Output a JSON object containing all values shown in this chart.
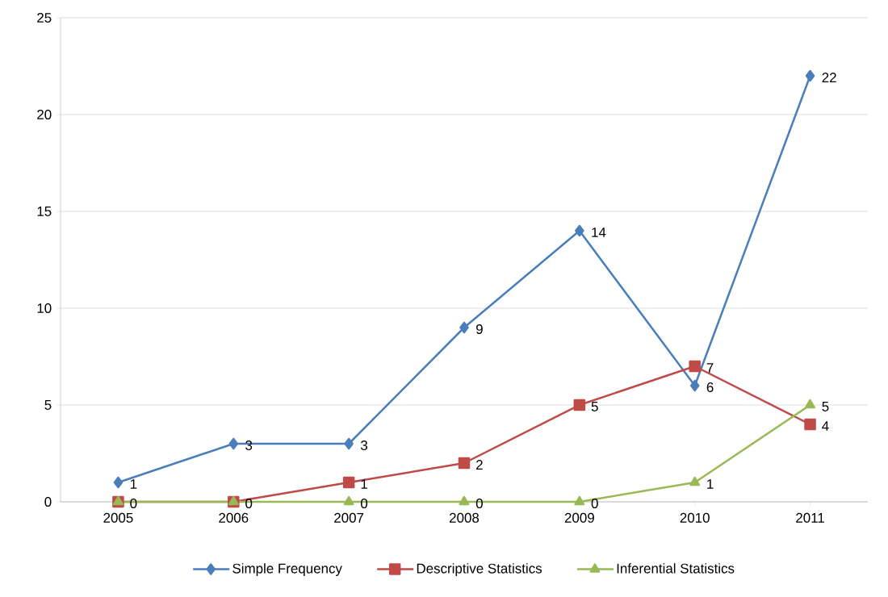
{
  "chart_data": {
    "type": "line",
    "categories": [
      "2005",
      "2006",
      "2007",
      "2008",
      "2009",
      "2010",
      "2011"
    ],
    "series": [
      {
        "name": "Simple Frequency",
        "color": "#4a7ebb",
        "marker": "diamond",
        "values": [
          1,
          3,
          3,
          9,
          14,
          6,
          22
        ]
      },
      {
        "name": "Descriptive Statistics",
        "color": "#be4b48",
        "marker": "square",
        "values": [
          0,
          0,
          1,
          2,
          5,
          7,
          4
        ],
        "value_labels": [
          null,
          null,
          "1",
          "2",
          "5",
          "7",
          "4"
        ]
      },
      {
        "name": "Inferential Statistics",
        "color": "#98b954",
        "marker": "triangle",
        "values": [
          0,
          0,
          0,
          0,
          0,
          1,
          5
        ]
      }
    ],
    "ylim": [
      0,
      25
    ],
    "yticks": [
      0,
      5,
      10,
      15,
      20,
      25
    ],
    "grid": "y",
    "legend": "bottom",
    "data_labels": true,
    "line_style": "solid"
  }
}
